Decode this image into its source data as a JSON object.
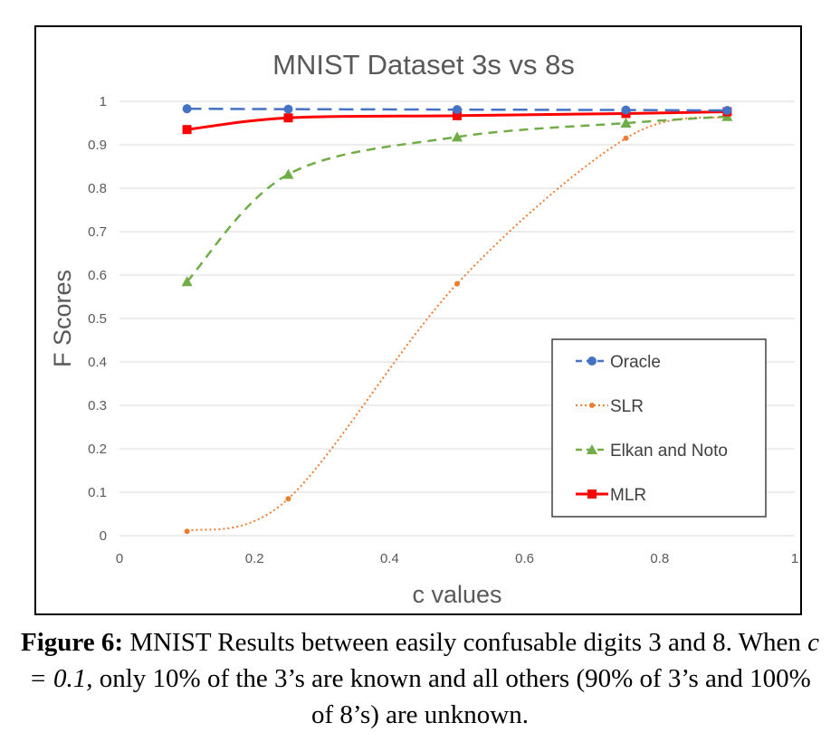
{
  "chart_data": {
    "type": "line",
    "title": "MNIST Dataset 3s vs 8s",
    "xlabel": "c values",
    "ylabel": "F Scores",
    "xlim": [
      0,
      1
    ],
    "ylim": [
      0,
      1
    ],
    "x_ticks": [
      "0",
      "0.2",
      "0.4",
      "0.6",
      "0.8",
      "1"
    ],
    "y_ticks": [
      "0",
      "0.1",
      "0.2",
      "0.3",
      "0.4",
      "0.5",
      "0.6",
      "0.7",
      "0.8",
      "0.9",
      "1"
    ],
    "grid": "horizontal",
    "legend_position": "bottom-right",
    "series": [
      {
        "name": "Oracle",
        "color": "#4472C4",
        "line": "dashed",
        "marker": "circle",
        "x": [
          0.1,
          0.25,
          0.5,
          0.75,
          0.9
        ],
        "y": [
          0.983,
          0.982,
          0.981,
          0.98,
          0.979
        ]
      },
      {
        "name": "SLR",
        "color": "#ED7D31",
        "line": "dotted",
        "marker": "small-circle",
        "x": [
          0.1,
          0.25,
          0.5,
          0.75,
          0.9
        ],
        "y": [
          0.01,
          0.085,
          0.58,
          0.915,
          0.965
        ]
      },
      {
        "name": "Elkan and Noto",
        "color": "#70AD47",
        "line": "dashed",
        "marker": "triangle",
        "x": [
          0.1,
          0.25,
          0.5,
          0.75,
          0.9
        ],
        "y": [
          0.585,
          0.832,
          0.918,
          0.95,
          0.965
        ]
      },
      {
        "name": "MLR",
        "color": "#FF0000",
        "line": "solid",
        "marker": "square",
        "x": [
          0.1,
          0.25,
          0.5,
          0.75,
          0.9
        ],
        "y": [
          0.935,
          0.962,
          0.967,
          0.972,
          0.976
        ]
      }
    ]
  },
  "caption": {
    "label": "Figure 6:",
    "text_1": " MNIST Results between easily confusable digits 3 and 8. When ",
    "math": "c = 0.1",
    "text_2": ", only 10% of the 3’s are known and all others (90% of 3’s and 100% of 8’s) are unknown."
  }
}
